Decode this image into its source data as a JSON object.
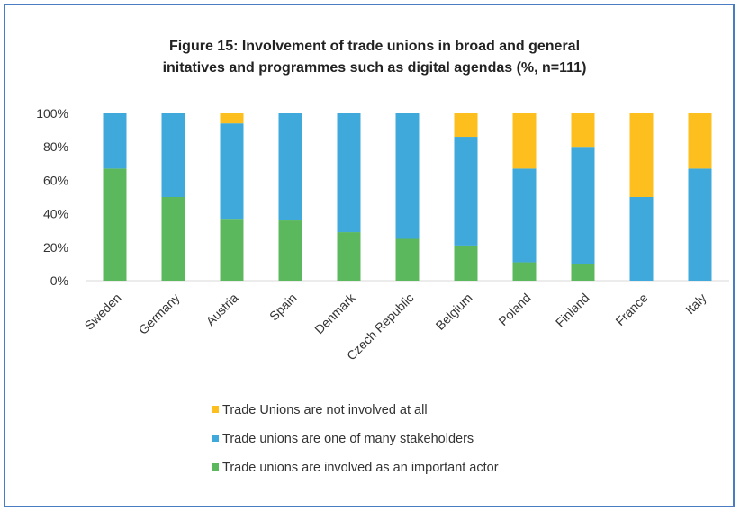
{
  "chart_data": {
    "type": "bar",
    "stacked": true,
    "title_lines": [
      "Figure 15: Involvement of trade unions in broad and general",
      "initatives and programmes such as digital agendas (%, n=111)"
    ],
    "categories": [
      "Sweden",
      "Germany",
      "Austria",
      "Spain",
      "Denmark",
      "Czech Republic",
      "Belgium",
      "Poland",
      "Finland",
      "France",
      "Italy"
    ],
    "series": [
      {
        "name": "Trade unions are involved as an important actor",
        "color": "#5cb85c",
        "values": [
          67,
          50,
          37,
          36,
          29,
          25,
          21,
          11,
          10,
          0,
          0
        ]
      },
      {
        "name": "Trade unions are one of many stakeholders",
        "color": "#3fa9dc",
        "values": [
          33,
          50,
          57,
          64,
          71,
          75,
          65,
          56,
          70,
          50,
          67
        ]
      },
      {
        "name": "Trade Unions are not involved at all",
        "color": "#fcbf1e",
        "values": [
          0,
          0,
          6,
          0,
          0,
          0,
          14,
          33,
          20,
          50,
          33
        ]
      }
    ],
    "y_ticks": [
      "0%",
      "20%",
      "40%",
      "60%",
      "80%",
      "100%"
    ],
    "ylim": [
      0,
      100
    ],
    "legend_order": [
      2,
      1,
      0
    ],
    "legend_position": "bottom",
    "grid": false
  }
}
